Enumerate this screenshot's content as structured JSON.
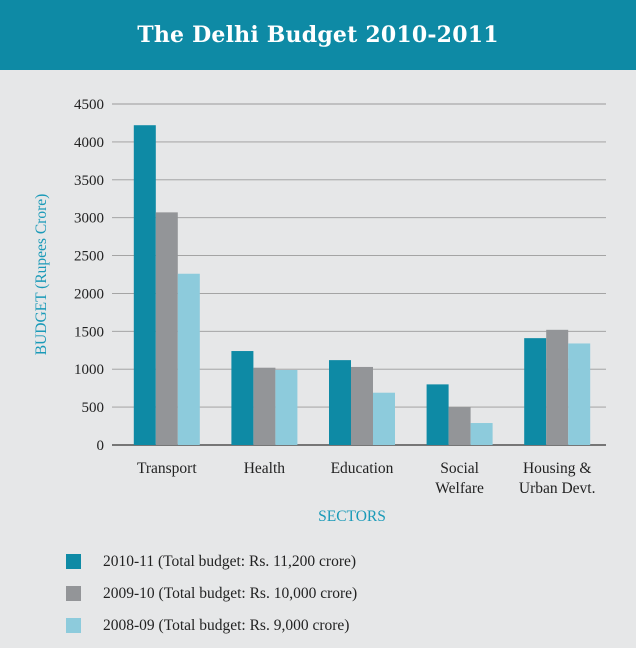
{
  "header": {
    "title": "The Delhi Budget 2010-2011"
  },
  "colors": {
    "header_bg": "#0e8aa5",
    "panel_bg": "#e6e7e8",
    "series": [
      "#0e8aa5",
      "#939598",
      "#8dcbdc"
    ],
    "axis_title": "#1a9ab8"
  },
  "legend": {
    "items": [
      {
        "label": "2010-11 (Total budget: Rs. 11,200 crore)"
      },
      {
        "label": "2009-10 (Total budget: Rs. 10,000 crore)"
      },
      {
        "label": "2008-09 (Total budget: Rs. 9,000 crore)"
      }
    ]
  },
  "chart_data": {
    "type": "bar",
    "title": "The Delhi Budget 2010-2011",
    "xlabel": "SECTORS",
    "ylabel": "BUDGET (Rupees Crore)",
    "ylim": [
      0,
      4500
    ],
    "yticks": [
      0,
      500,
      1000,
      1500,
      2000,
      2500,
      3000,
      3500,
      4000,
      4500
    ],
    "grid": true,
    "legend_position": "bottom",
    "categories": [
      [
        "Transport"
      ],
      [
        "Health"
      ],
      [
        "Education"
      ],
      [
        "Social",
        "Welfare"
      ],
      [
        "Housing &",
        "Urban Devt."
      ]
    ],
    "series": [
      {
        "name": "2010-11 (Total budget: Rs. 11,200 crore)",
        "values": [
          4220,
          1240,
          1120,
          800,
          1410
        ]
      },
      {
        "name": "2009-10 (Total budget: Rs. 10,000 crore)",
        "values": [
          3070,
          1020,
          1030,
          500,
          1520
        ]
      },
      {
        "name": "2008-09 (Total budget: Rs. 9,000 crore)",
        "values": [
          2260,
          990,
          690,
          290,
          1340
        ]
      }
    ]
  }
}
